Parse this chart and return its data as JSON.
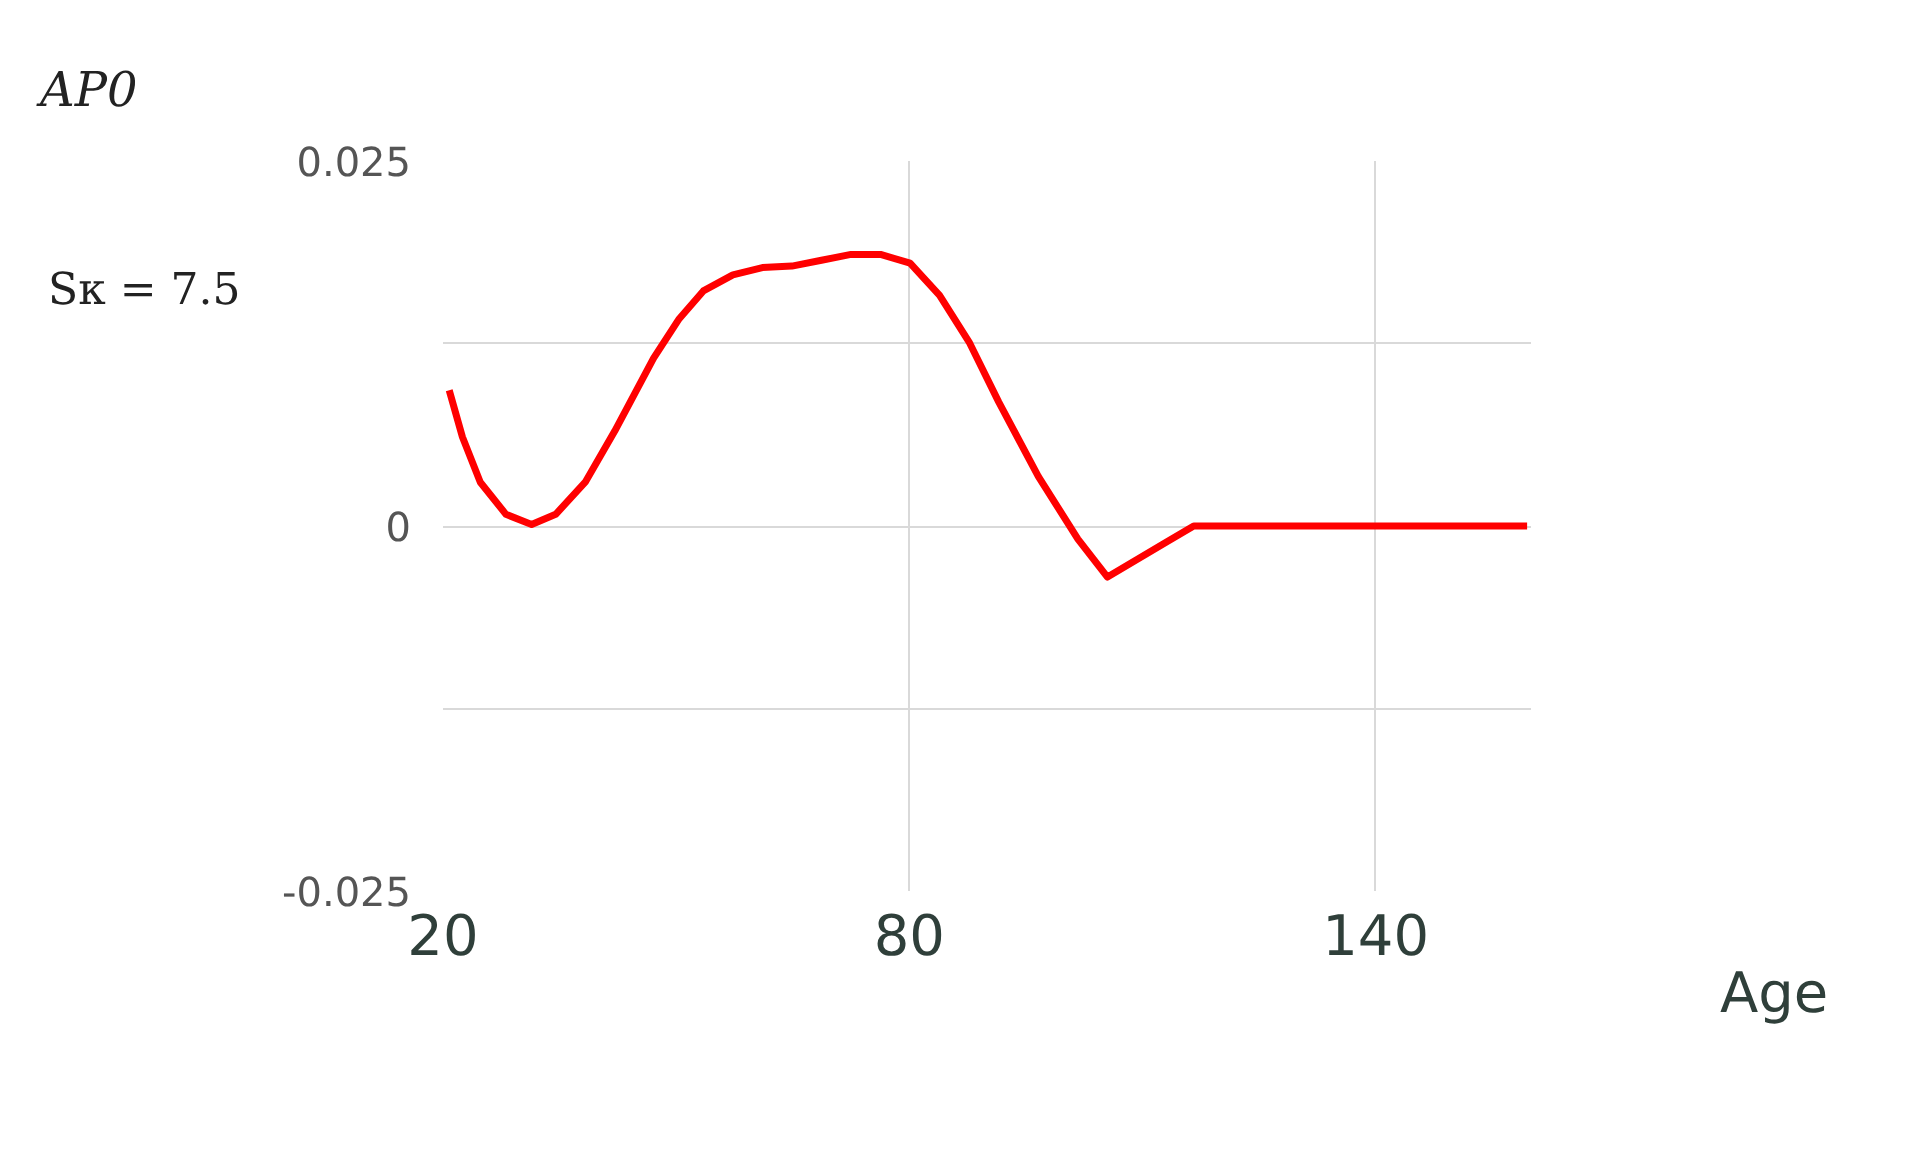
{
  "chart_data": {
    "type": "line",
    "title": "AP0",
    "xlabel": "Age",
    "annotations": [
      "Sκ = 7.5"
    ],
    "x": [
      20.8,
      22.5,
      24.8,
      28.1,
      31.4,
      34.5,
      38.3,
      42.1,
      47.1,
      50.4,
      53.5,
      57.3,
      61.1,
      64.9,
      68.7,
      72.5,
      76.3,
      80.1,
      83.9,
      87.7,
      91.5,
      96.6,
      101.7,
      105.5,
      109.3,
      113.1,
      116.6,
      130.8,
      159.5
    ],
    "series": [
      {
        "color": "#ff0000",
        "values": [
          0.0093,
          0.0061,
          0.003,
          0.0008,
          0.0001,
          0.0008,
          0.003,
          0.0065,
          0.0115,
          0.0142,
          0.0161,
          0.0172,
          0.0177,
          0.0178,
          0.0182,
          0.0186,
          0.0186,
          0.018,
          0.0158,
          0.0126,
          0.0085,
          0.0034,
          -0.0009,
          -0.0035,
          -0.0023,
          -0.0011,
          0,
          0,
          0
        ]
      }
    ],
    "xlim": [
      20,
      160
    ],
    "ylim": [
      -0.025,
      0.025
    ],
    "xticks": [
      20,
      80,
      140
    ],
    "yticks": [
      -0.025,
      {
        "value": -0.0125,
        "label": null
      },
      0,
      {
        "value": 0.0125,
        "label": null
      },
      0.025
    ],
    "grid": true,
    "marker": "none",
    "line_style": "solid"
  }
}
